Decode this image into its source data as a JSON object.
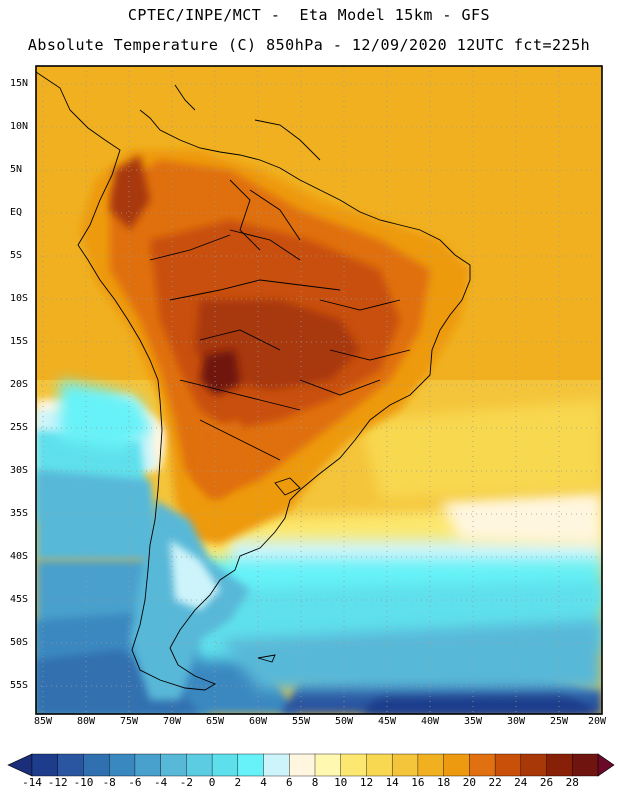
{
  "header": {
    "line1": "CPTEC/INPE/MCT -  Eta Model 15km - GFS",
    "line2": "Absolute Temperature (C) 850hPa - 12/09/2020 12UTC fct=225h"
  },
  "lat_labels": [
    "15N",
    "10N",
    "5N",
    "EQ",
    "5S",
    "10S",
    "15S",
    "20S",
    "25S",
    "30S",
    "35S",
    "40S",
    "45S",
    "50S",
    "55S"
  ],
  "lon_labels": [
    "85W",
    "80W",
    "75W",
    "70W",
    "65W",
    "60W",
    "55W",
    "50W",
    "45W",
    "40W",
    "35W",
    "30W",
    "25W",
    "20W"
  ],
  "colorbar": {
    "labels": [
      "-14",
      "-12",
      "-10",
      "-8",
      "-6",
      "-4",
      "-2",
      "0",
      "2",
      "4",
      "6",
      "8",
      "10",
      "12",
      "14",
      "16",
      "18",
      "20",
      "22",
      "24",
      "26",
      "28"
    ],
    "colors": [
      "#1e3c8c",
      "#2a55a0",
      "#3070b0",
      "#3a88c0",
      "#48a0cc",
      "#58b8d8",
      "#5ccce2",
      "#5ee0ec",
      "#66f2f8",
      "#cdf4fa",
      "#fff6e0",
      "#fff8b0",
      "#fce870",
      "#f8d850",
      "#f4c43a",
      "#f0b020",
      "#ee9a10",
      "#e07010",
      "#c85008",
      "#a83808",
      "#882008",
      "#701410"
    ],
    "under_color": "#1a2e7a",
    "over_color": "#6a0a28"
  }
}
